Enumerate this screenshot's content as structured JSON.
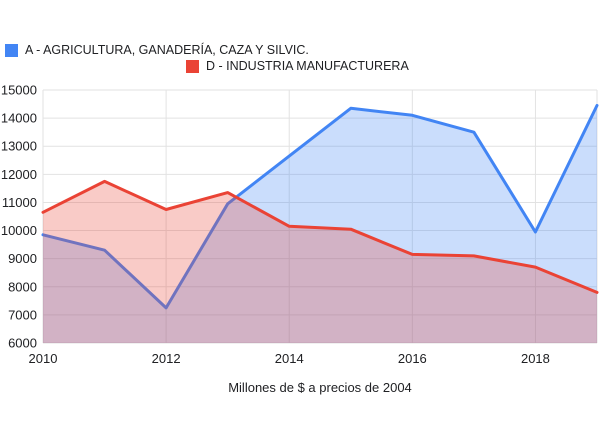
{
  "legend": {
    "items": [
      {
        "id": "agricultura",
        "label": "A - AGRICULTURA, GANADERÍA, CAZA Y SILVIC.",
        "color": "#4285F4"
      },
      {
        "id": "industria",
        "label": "D - INDUSTRIA MANUFACTURERA",
        "color": "#EA4335"
      }
    ]
  },
  "chart_data": {
    "type": "area",
    "x": [
      2010,
      2011,
      2012,
      2013,
      2014,
      2015,
      2016,
      2017,
      2018,
      2019
    ],
    "series": [
      {
        "name": "A - AGRICULTURA, GANADERÍA, CAZA Y SILVIC.",
        "color": "#4285F4",
        "fill": "rgba(66,133,244,0.28)",
        "values": [
          9850,
          9300,
          7250,
          10950,
          12650,
          14350,
          14100,
          13500,
          9950,
          14450
        ]
      },
      {
        "name": "D - INDUSTRIA MANUFACTURERA",
        "color": "#EA4335",
        "fill": "rgba(234,67,53,0.28)",
        "values": [
          10650,
          11750,
          10750,
          11350,
          10150,
          10050,
          9150,
          9100,
          8700,
          7800
        ]
      }
    ],
    "title": "",
    "xlabel": "Millones de $ a precios de 2004",
    "ylabel": "",
    "xlim": [
      2010,
      2019
    ],
    "ylim": [
      6000,
      15000
    ],
    "xticks": [
      2010,
      2012,
      2014,
      2016,
      2018
    ],
    "yticks": [
      6000,
      7000,
      8000,
      9000,
      10000,
      11000,
      12000,
      13000,
      14000,
      15000
    ],
    "grid": true,
    "gridline_color": "#e2e2e2",
    "text_color": "#202124",
    "legend_position": "top"
  }
}
